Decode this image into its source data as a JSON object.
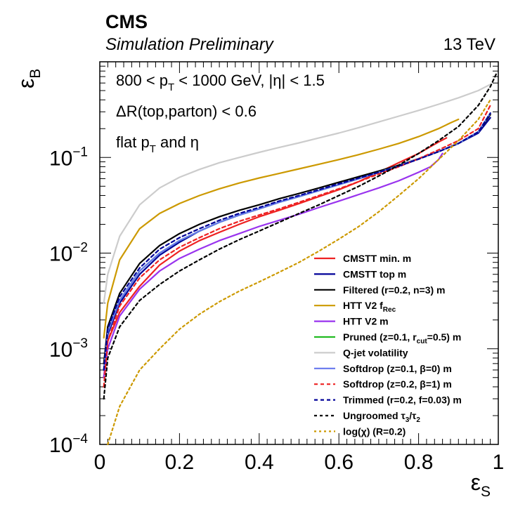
{
  "header": {
    "experiment": "CMS",
    "status": "Simulation Preliminary",
    "energy": "13 TeV"
  },
  "annotations": {
    "line1": {
      "pre": "800 < p",
      "sub": "T",
      "post": " < 1000 GeV, |η| < 1.5"
    },
    "line2": "ΔR(top,parton) < 0.6",
    "line3": {
      "pre": "flat p",
      "sub": "T",
      "post": " and η"
    }
  },
  "chart_data": {
    "type": "line",
    "title": "",
    "xlabel": {
      "base": "ε",
      "sub": "S"
    },
    "ylabel": {
      "base": "ε",
      "sub": "B"
    },
    "xlim": [
      0,
      1
    ],
    "ylim": [
      0.0001,
      1
    ],
    "yscale": "log",
    "x_ticks": [
      "0",
      "0.2",
      "0.4",
      "0.6",
      "0.8",
      "1"
    ],
    "y_ticks": [
      {
        "base": "10",
        "exp": "−1",
        "value": 0.1
      },
      {
        "base": "10",
        "exp": "−2",
        "value": 0.01
      },
      {
        "base": "10",
        "exp": "−3",
        "value": 0.001
      },
      {
        "base": "10",
        "exp": "−4",
        "value": 0.0001
      }
    ],
    "legend_position": "bottom-right",
    "series": [
      {
        "key": "cmstt_min",
        "label": {
          "pre": "CMSTT min. m"
        },
        "color": "#ee2222",
        "dashed": false,
        "points": [
          [
            0.01,
            0.0005
          ],
          [
            0.02,
            0.0012
          ],
          [
            0.05,
            0.0024
          ],
          [
            0.1,
            0.0045
          ],
          [
            0.15,
            0.0075
          ],
          [
            0.2,
            0.0105
          ],
          [
            0.25,
            0.0135
          ],
          [
            0.3,
            0.0165
          ],
          [
            0.35,
            0.02
          ],
          [
            0.4,
            0.024
          ],
          [
            0.45,
            0.028
          ],
          [
            0.5,
            0.033
          ],
          [
            0.55,
            0.039
          ],
          [
            0.6,
            0.046
          ],
          [
            0.65,
            0.056
          ],
          [
            0.7,
            0.07
          ],
          [
            0.75,
            0.088
          ],
          [
            0.8,
            0.11
          ],
          [
            0.85,
            0.145
          ],
          [
            0.87,
            0.16
          ]
        ]
      },
      {
        "key": "cmstt_top",
        "label": {
          "pre": "CMSTT top m"
        },
        "color": "#000099",
        "dashed": false,
        "points": [
          [
            0.01,
            0.0006
          ],
          [
            0.02,
            0.0014
          ],
          [
            0.05,
            0.003
          ],
          [
            0.1,
            0.006
          ],
          [
            0.15,
            0.0095
          ],
          [
            0.2,
            0.013
          ],
          [
            0.25,
            0.017
          ],
          [
            0.3,
            0.021
          ],
          [
            0.35,
            0.025
          ],
          [
            0.4,
            0.029
          ],
          [
            0.45,
            0.034
          ],
          [
            0.5,
            0.039
          ],
          [
            0.55,
            0.045
          ],
          [
            0.6,
            0.052
          ],
          [
            0.65,
            0.06
          ],
          [
            0.7,
            0.07
          ],
          [
            0.75,
            0.082
          ],
          [
            0.8,
            0.097
          ],
          [
            0.85,
            0.115
          ],
          [
            0.9,
            0.14
          ],
          [
            0.95,
            0.18
          ],
          [
            0.98,
            0.26
          ]
        ]
      },
      {
        "key": "filtered",
        "label": {
          "pre": "Filtered (r=0.2, n=3) m"
        },
        "color": "#000000",
        "dashed": false,
        "points": [
          [
            0.01,
            0.0007
          ],
          [
            0.02,
            0.0017
          ],
          [
            0.05,
            0.0038
          ],
          [
            0.1,
            0.0078
          ],
          [
            0.15,
            0.012
          ],
          [
            0.2,
            0.016
          ],
          [
            0.25,
            0.02
          ],
          [
            0.3,
            0.024
          ],
          [
            0.35,
            0.028
          ],
          [
            0.4,
            0.032
          ],
          [
            0.45,
            0.037
          ],
          [
            0.5,
            0.042
          ],
          [
            0.55,
            0.048
          ],
          [
            0.6,
            0.055
          ],
          [
            0.65,
            0.063
          ],
          [
            0.7,
            0.072
          ],
          [
            0.75,
            0.083
          ],
          [
            0.8,
            0.097
          ],
          [
            0.85,
            0.115
          ],
          [
            0.9,
            0.14
          ],
          [
            0.95,
            0.185
          ],
          [
            0.98,
            0.28
          ]
        ]
      },
      {
        "key": "htt_frec",
        "label": {
          "pre": "HTT V2 f",
          "sub": "Rec"
        },
        "color": "#cc9900",
        "dashed": false,
        "points": [
          [
            0.01,
            0.0013
          ],
          [
            0.02,
            0.003
          ],
          [
            0.05,
            0.0085
          ],
          [
            0.1,
            0.018
          ],
          [
            0.15,
            0.026
          ],
          [
            0.2,
            0.033
          ],
          [
            0.25,
            0.04
          ],
          [
            0.3,
            0.047
          ],
          [
            0.35,
            0.054
          ],
          [
            0.4,
            0.061
          ],
          [
            0.45,
            0.068
          ],
          [
            0.5,
            0.076
          ],
          [
            0.55,
            0.085
          ],
          [
            0.6,
            0.095
          ],
          [
            0.65,
            0.107
          ],
          [
            0.7,
            0.122
          ],
          [
            0.75,
            0.14
          ],
          [
            0.8,
            0.165
          ],
          [
            0.85,
            0.2
          ],
          [
            0.88,
            0.23
          ],
          [
            0.9,
            0.25
          ]
        ]
      },
      {
        "key": "htt_m",
        "label": {
          "pre": "HTT V2 m"
        },
        "color": "#9933ee",
        "dashed": false,
        "points": [
          [
            0.01,
            0.0005
          ],
          [
            0.02,
            0.001
          ],
          [
            0.05,
            0.0022
          ],
          [
            0.1,
            0.0042
          ],
          [
            0.15,
            0.0065
          ],
          [
            0.2,
            0.0088
          ],
          [
            0.25,
            0.011
          ],
          [
            0.3,
            0.0135
          ],
          [
            0.35,
            0.016
          ],
          [
            0.4,
            0.019
          ],
          [
            0.45,
            0.022
          ],
          [
            0.5,
            0.0255
          ],
          [
            0.55,
            0.03
          ],
          [
            0.6,
            0.035
          ],
          [
            0.65,
            0.041
          ],
          [
            0.7,
            0.048
          ],
          [
            0.75,
            0.057
          ],
          [
            0.8,
            0.07
          ],
          [
            0.83,
            0.08
          ],
          [
            0.85,
            0.095
          ],
          [
            0.86,
            0.11
          ]
        ]
      },
      {
        "key": "pruned",
        "label": {
          "pre": "Pruned (z=0.1, r",
          "sub": "cut",
          "post": "=0.5) m"
        },
        "color": "#22bb22",
        "dashed": false,
        "points": [
          [
            0.01,
            0.0006
          ],
          [
            0.02,
            0.0015
          ],
          [
            0.05,
            0.0032
          ],
          [
            0.1,
            0.0065
          ],
          [
            0.15,
            0.01
          ],
          [
            0.2,
            0.0135
          ],
          [
            0.25,
            0.017
          ],
          [
            0.3,
            0.021
          ],
          [
            0.35,
            0.025
          ],
          [
            0.4,
            0.029
          ],
          [
            0.45,
            0.034
          ],
          [
            0.5,
            0.039
          ],
          [
            0.55,
            0.045
          ],
          [
            0.6,
            0.052
          ],
          [
            0.65,
            0.06
          ],
          [
            0.7,
            0.07
          ],
          [
            0.75,
            0.082
          ],
          [
            0.8,
            0.097
          ],
          [
            0.85,
            0.115
          ],
          [
            0.9,
            0.14
          ],
          [
            0.95,
            0.185
          ],
          [
            0.98,
            0.29
          ]
        ]
      },
      {
        "key": "qjet",
        "label": {
          "pre": "Q-jet volatility"
        },
        "color": "#cccccc",
        "dashed": false,
        "points": [
          [
            0.01,
            0.003
          ],
          [
            0.02,
            0.006
          ],
          [
            0.05,
            0.015
          ],
          [
            0.1,
            0.032
          ],
          [
            0.15,
            0.048
          ],
          [
            0.2,
            0.062
          ],
          [
            0.25,
            0.075
          ],
          [
            0.3,
            0.088
          ],
          [
            0.35,
            0.1
          ],
          [
            0.4,
            0.113
          ],
          [
            0.45,
            0.127
          ],
          [
            0.5,
            0.142
          ],
          [
            0.55,
            0.16
          ],
          [
            0.6,
            0.18
          ],
          [
            0.65,
            0.205
          ],
          [
            0.7,
            0.235
          ],
          [
            0.75,
            0.27
          ],
          [
            0.8,
            0.31
          ],
          [
            0.85,
            0.36
          ],
          [
            0.9,
            0.42
          ],
          [
            0.95,
            0.5
          ],
          [
            0.98,
            0.58
          ]
        ]
      },
      {
        "key": "softdrop0",
        "label": {
          "pre": "Softdrop (z=0.1,  β=0) m"
        },
        "color": "#6677ee",
        "dashed": false,
        "points": [
          [
            0.01,
            0.0006
          ],
          [
            0.02,
            0.0015
          ],
          [
            0.05,
            0.0032
          ],
          [
            0.1,
            0.0065
          ],
          [
            0.15,
            0.01
          ],
          [
            0.2,
            0.0135
          ],
          [
            0.25,
            0.017
          ],
          [
            0.3,
            0.021
          ],
          [
            0.35,
            0.025
          ],
          [
            0.4,
            0.029
          ],
          [
            0.45,
            0.034
          ],
          [
            0.5,
            0.039
          ],
          [
            0.55,
            0.045
          ],
          [
            0.6,
            0.052
          ],
          [
            0.65,
            0.06
          ],
          [
            0.7,
            0.07
          ],
          [
            0.75,
            0.082
          ],
          [
            0.8,
            0.097
          ],
          [
            0.85,
            0.115
          ],
          [
            0.9,
            0.14
          ],
          [
            0.95,
            0.185
          ],
          [
            0.98,
            0.29
          ]
        ]
      },
      {
        "key": "softdrop1",
        "label": {
          "pre": "Softdrop (z=0.2,  β=1) m"
        },
        "color": "#ee2222",
        "dashed": true,
        "points": [
          [
            0.01,
            0.0004
          ],
          [
            0.02,
            0.0012
          ],
          [
            0.05,
            0.0028
          ],
          [
            0.1,
            0.0055
          ],
          [
            0.15,
            0.0085
          ],
          [
            0.2,
            0.0115
          ],
          [
            0.25,
            0.0145
          ],
          [
            0.3,
            0.018
          ],
          [
            0.35,
            0.0215
          ],
          [
            0.4,
            0.025
          ],
          [
            0.45,
            0.029
          ],
          [
            0.5,
            0.034
          ],
          [
            0.55,
            0.04
          ],
          [
            0.6,
            0.047
          ],
          [
            0.65,
            0.056
          ],
          [
            0.7,
            0.067
          ],
          [
            0.75,
            0.08
          ],
          [
            0.8,
            0.097
          ],
          [
            0.85,
            0.12
          ],
          [
            0.9,
            0.15
          ],
          [
            0.95,
            0.2
          ],
          [
            0.98,
            0.35
          ]
        ]
      },
      {
        "key": "trimmed",
        "label": {
          "pre": "Trimmed (r=0.2, f=0.03) m"
        },
        "color": "#000099",
        "dashed": true,
        "points": [
          [
            0.01,
            0.0006
          ],
          [
            0.02,
            0.0016
          ],
          [
            0.05,
            0.0035
          ],
          [
            0.1,
            0.007
          ],
          [
            0.15,
            0.011
          ],
          [
            0.2,
            0.0145
          ],
          [
            0.25,
            0.018
          ],
          [
            0.3,
            0.022
          ],
          [
            0.35,
            0.026
          ],
          [
            0.4,
            0.03
          ],
          [
            0.45,
            0.035
          ],
          [
            0.5,
            0.04
          ],
          [
            0.55,
            0.046
          ],
          [
            0.6,
            0.053
          ],
          [
            0.65,
            0.061
          ],
          [
            0.7,
            0.07
          ],
          [
            0.75,
            0.081
          ],
          [
            0.8,
            0.096
          ],
          [
            0.85,
            0.115
          ],
          [
            0.9,
            0.14
          ],
          [
            0.95,
            0.185
          ],
          [
            0.98,
            0.29
          ]
        ]
      },
      {
        "key": "tau32",
        "label": {
          "pre": "Ungroomed τ",
          "sub": "3",
          "post": "/τ",
          "sub2": "2"
        },
        "color": "#000000",
        "dashed": true,
        "points": [
          [
            0.01,
            0.0003
          ],
          [
            0.02,
            0.0008
          ],
          [
            0.05,
            0.0017
          ],
          [
            0.1,
            0.0032
          ],
          [
            0.15,
            0.0047
          ],
          [
            0.2,
            0.0065
          ],
          [
            0.25,
            0.0085
          ],
          [
            0.3,
            0.011
          ],
          [
            0.35,
            0.0138
          ],
          [
            0.4,
            0.017
          ],
          [
            0.45,
            0.021
          ],
          [
            0.5,
            0.026
          ],
          [
            0.55,
            0.032
          ],
          [
            0.6,
            0.04
          ],
          [
            0.65,
            0.05
          ],
          [
            0.7,
            0.064
          ],
          [
            0.75,
            0.083
          ],
          [
            0.8,
            0.11
          ],
          [
            0.85,
            0.15
          ],
          [
            0.9,
            0.21
          ],
          [
            0.95,
            0.35
          ],
          [
            0.98,
            0.55
          ],
          [
            0.995,
            0.75
          ]
        ]
      },
      {
        "key": "logchi",
        "label": {
          "pre": "log(χ) (R=0.2)"
        },
        "color": "#cc9900",
        "dashed": true,
        "points": [
          [
            0.02,
            0.0001
          ],
          [
            0.05,
            0.00025
          ],
          [
            0.1,
            0.0006
          ],
          [
            0.15,
            0.001
          ],
          [
            0.2,
            0.0016
          ],
          [
            0.25,
            0.0023
          ],
          [
            0.3,
            0.0031
          ],
          [
            0.35,
            0.004
          ],
          [
            0.4,
            0.005
          ],
          [
            0.45,
            0.0063
          ],
          [
            0.5,
            0.008
          ],
          [
            0.55,
            0.0105
          ],
          [
            0.6,
            0.014
          ],
          [
            0.65,
            0.019
          ],
          [
            0.7,
            0.027
          ],
          [
            0.75,
            0.04
          ],
          [
            0.8,
            0.06
          ],
          [
            0.85,
            0.095
          ],
          [
            0.9,
            0.15
          ],
          [
            0.95,
            0.25
          ],
          [
            0.98,
            0.4
          ]
        ]
      }
    ]
  }
}
